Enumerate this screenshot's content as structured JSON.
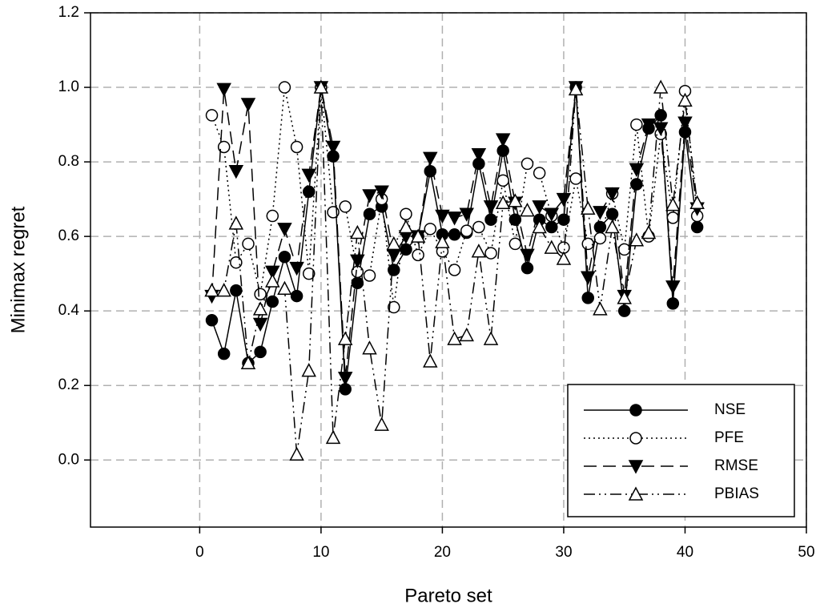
{
  "chart_data": {
    "type": "line",
    "x_label": "Pareto set",
    "y_label": "Minimax regret",
    "x": [
      1,
      2,
      3,
      4,
      5,
      6,
      7,
      8,
      9,
      10,
      11,
      12,
      13,
      14,
      15,
      16,
      17,
      18,
      19,
      20,
      21,
      22,
      23,
      24,
      25,
      26,
      27,
      28,
      29,
      30,
      31,
      32,
      33,
      34,
      35,
      36,
      37,
      38,
      39,
      40,
      41
    ],
    "xlim": [
      -9,
      50
    ],
    "xticks": [
      0,
      10,
      20,
      30,
      40,
      50
    ],
    "ylim": [
      -0.18,
      1.2
    ],
    "yticks": [
      {
        "value": 0,
        "label": "0.0"
      },
      0.2,
      0.4,
      0.6,
      0.8,
      {
        "value": 1,
        "label": "1.0"
      },
      1.2
    ],
    "grid": true,
    "legend": "lower right",
    "series": [
      {
        "name": "NSE",
        "color": "#000000",
        "marker": "circle",
        "filled": true,
        "dash": "solid",
        "values": [
          0.375,
          0.285,
          0.455,
          0.26,
          0.29,
          0.425,
          0.545,
          0.44,
          0.72,
          1.0,
          0.815,
          0.19,
          0.475,
          0.66,
          0.68,
          0.51,
          0.565,
          0.6,
          0.775,
          0.605,
          0.605,
          0.61,
          0.795,
          0.645,
          0.83,
          0.645,
          0.515,
          0.645,
          0.625,
          0.645,
          1.0,
          0.435,
          0.625,
          0.66,
          0.4,
          0.74,
          0.89,
          0.925,
          0.42,
          0.88,
          0.625
        ]
      },
      {
        "name": "PFE",
        "color": "#000000",
        "marker": "circle",
        "filled": false,
        "dash": "dotted",
        "values": [
          0.925,
          0.84,
          0.53,
          0.58,
          0.445,
          0.655,
          1.0,
          0.84,
          0.5,
          1.0,
          0.665,
          0.68,
          0.505,
          0.495,
          0.7,
          0.41,
          0.66,
          0.55,
          0.62,
          0.56,
          0.51,
          0.615,
          0.625,
          0.555,
          0.75,
          0.58,
          0.795,
          0.77,
          0.655,
          0.57,
          0.755,
          0.58,
          0.595,
          0.715,
          0.565,
          0.9,
          0.6,
          0.875,
          0.65,
          0.99,
          0.655
        ]
      },
      {
        "name": "RMSE",
        "color": "#000000",
        "marker": "triangle-down",
        "filled": true,
        "dash": "dashed",
        "values": [
          0.44,
          0.995,
          0.775,
          0.955,
          0.365,
          0.505,
          0.62,
          0.515,
          0.765,
          1.0,
          0.84,
          0.22,
          0.535,
          0.71,
          0.72,
          0.55,
          0.6,
          0.6,
          0.81,
          0.655,
          0.65,
          0.66,
          0.82,
          0.68,
          0.86,
          0.69,
          0.55,
          0.68,
          0.66,
          0.7,
          1.0,
          0.49,
          0.665,
          0.715,
          0.44,
          0.78,
          0.9,
          0.89,
          0.465,
          0.905,
          0.675
        ]
      },
      {
        "name": "PBIAS",
        "color": "#000000",
        "marker": "triangle-up",
        "filled": false,
        "dash": "dash-dot-dot",
        "values": [
          0.455,
          0.455,
          0.635,
          0.26,
          0.405,
          0.48,
          0.46,
          0.015,
          0.24,
          1.0,
          0.06,
          0.325,
          0.61,
          0.3,
          0.095,
          0.58,
          0.625,
          0.6,
          0.265,
          0.585,
          0.325,
          0.335,
          0.56,
          0.325,
          0.69,
          0.695,
          0.67,
          0.625,
          0.57,
          0.54,
          0.995,
          0.675,
          0.405,
          0.625,
          0.435,
          0.59,
          0.61,
          1.0,
          0.685,
          0.965,
          0.69
        ]
      }
    ]
  }
}
